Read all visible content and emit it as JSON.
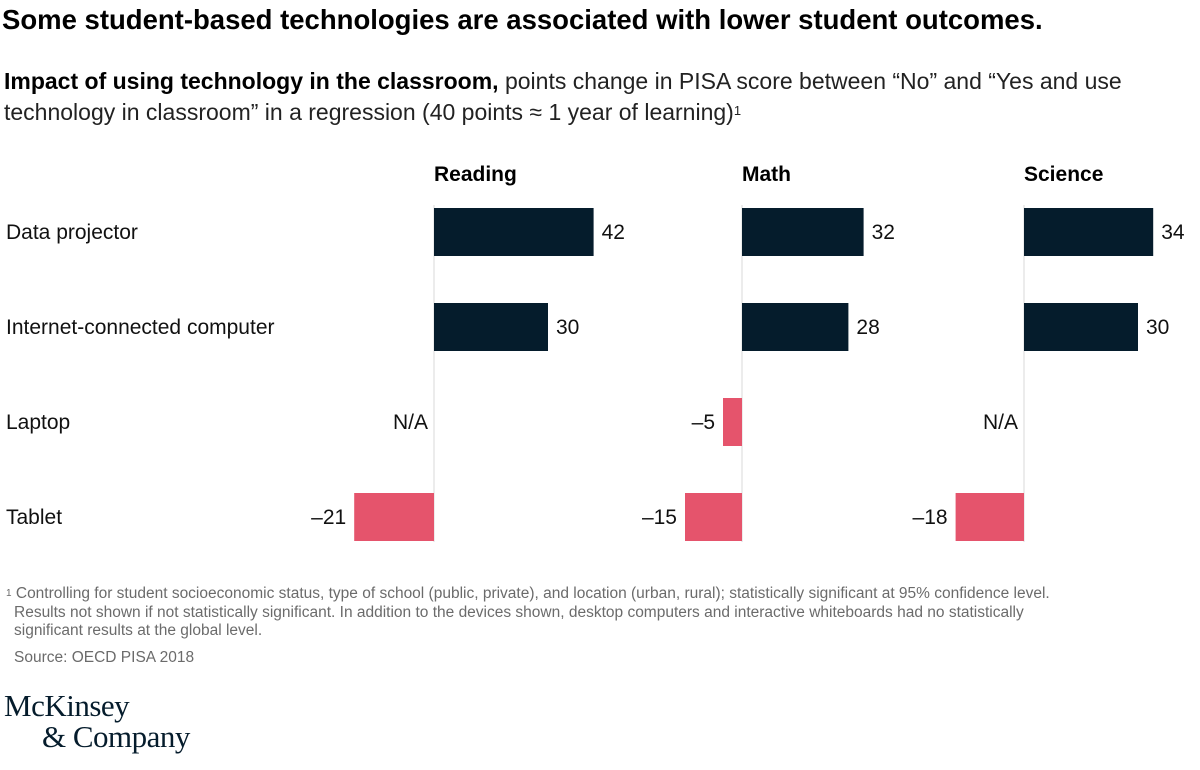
{
  "title": "Some student-based technologies are associated with lower student outcomes.",
  "subtitle": {
    "bold": "Impact of using technology in the classroom,",
    "rest": " points change in PISA score between “No” and “Yes and use technology in classroom” in a regression (40 points ≈ 1 year of learning)",
    "sup": "1"
  },
  "chart_data": {
    "type": "bar",
    "orientation": "horizontal",
    "categories": [
      "Data projector",
      "Internet-connected computer",
      "Laptop",
      "Tablet"
    ],
    "panels": [
      {
        "name": "Reading",
        "values": [
          42,
          30,
          null,
          -21
        ],
        "labels": [
          "42",
          "30",
          "N/A",
          "–21"
        ]
      },
      {
        "name": "Math",
        "values": [
          32,
          28,
          -5,
          -15
        ],
        "labels": [
          "32",
          "28",
          "–5",
          "–15"
        ]
      },
      {
        "name": "Science",
        "values": [
          34,
          30,
          null,
          -18
        ],
        "labels": [
          "34",
          "30",
          "N/A",
          "–18"
        ]
      }
    ],
    "colors": {
      "positive": "#051c2c",
      "negative": "#e5546c",
      "axis": "#d9d9d9"
    },
    "xlabel": "",
    "ylabel": ""
  },
  "footnote": {
    "sup": "1",
    "lines": [
      " Controlling for student socioeconomic status, type of school (public, private), and location (urban, rural); statistically significant at 95% confidence level.",
      "Results not shown if not statistically significant. In addition to the devices shown, desktop computers and interactive whiteboards had no statistically",
      "significant results at the global level."
    ]
  },
  "source": "Source: OECD PISA 2018",
  "logo": {
    "line1": "McKinsey",
    "line2": "& Company"
  }
}
